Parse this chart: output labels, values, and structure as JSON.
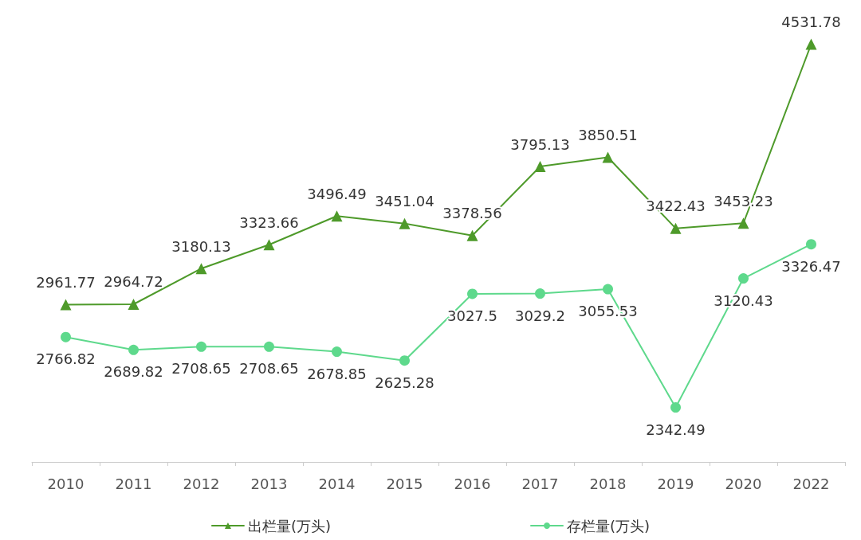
{
  "chart_data": {
    "type": "line",
    "categories": [
      "2010",
      "2011",
      "2012",
      "2013",
      "2014",
      "2015",
      "2016",
      "2017",
      "2018",
      "2019",
      "2020",
      "2022"
    ],
    "series": [
      {
        "name": "出栏量(万头)",
        "color": "#4e9a2a",
        "marker": "triangle",
        "values": [
          2961.77,
          2964.72,
          3180.13,
          3323.66,
          3496.49,
          3451.04,
          3378.56,
          3795.13,
          3850.51,
          3422.43,
          3453.23,
          4531.78
        ]
      },
      {
        "name": "存栏量(万头)",
        "color": "#5ed98c",
        "marker": "circle",
        "values": [
          2766.82,
          2689.82,
          2708.65,
          2708.65,
          2678.85,
          2625.28,
          3027.5,
          3029.2,
          3055.53,
          2342.49,
          3120.43,
          3326.47
        ]
      }
    ],
    "tick_labels": "x",
    "grid": false,
    "legend": "bottom",
    "data_labels": true,
    "line_style": "solid"
  }
}
